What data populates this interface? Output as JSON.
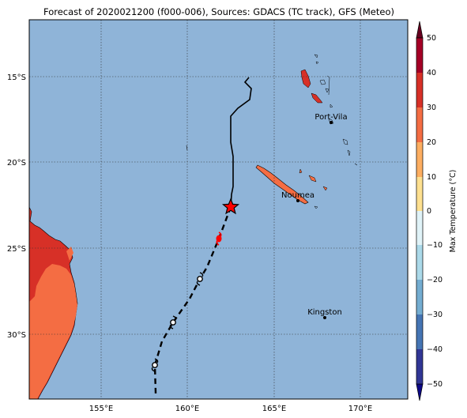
{
  "title": "Forecast of 2020021200 (f000-006), Sources: GDACS (TC track), GFS (Meteo)",
  "lon_labels": [
    "155°E",
    "160°E",
    "165°E",
    "170°E"
  ],
  "lat_labels": [
    "15°S",
    "20°S",
    "25°S",
    "30°S"
  ],
  "cities": {
    "port_vila": "Port-Vila",
    "noumea": "Noumea",
    "kingston": "Kingston"
  },
  "colorbar": {
    "label": "Max Temperature (°C)",
    "ticks": [
      "50",
      "40",
      "30",
      "20",
      "10",
      "0",
      "−10",
      "−20",
      "−30",
      "−40",
      "−50"
    ]
  },
  "colors": {
    "ocean": "#8fb4d8",
    "land_warm": "#f46d43",
    "land_hot": "#d73027",
    "track_past": "#000000",
    "track_forecast": "#000000",
    "storm_marker": "#ff0000"
  }
}
